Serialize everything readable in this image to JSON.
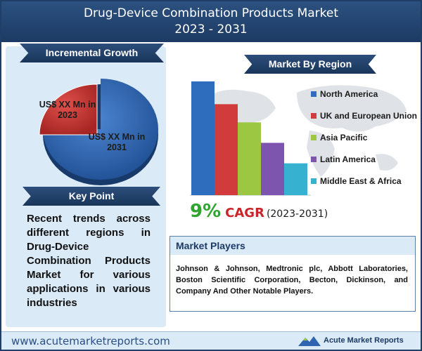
{
  "header": {
    "title_line1": "Drug-Device Combination Products Market",
    "title_line2": "2023 - 2031"
  },
  "incremental": {
    "heading": "Incremental Growth",
    "label_2023": "US$ XX Mn in 2023",
    "label_2031": "US$ XX Mn in 2031",
    "colors": {
      "2023": "#d03a37",
      "2031": "#2e64b0"
    }
  },
  "key_point": {
    "heading": "Key Point",
    "text": "Recent trends across different regions in Drug-Device Combination Products Market for various applications in various industries"
  },
  "region": {
    "heading": "Market By Region"
  },
  "chart_data": {
    "type": "bar",
    "title": "Market By Region",
    "categories": [
      "North America",
      "UK and European Union",
      "Asia Pacific",
      "Latin America",
      "Middle East & Africa"
    ],
    "values": [
      100,
      80,
      64,
      46,
      28
    ],
    "colors": [
      "#2e6cbe",
      "#d23b3b",
      "#9cc742",
      "#7d55ae",
      "#36b2d0"
    ],
    "ylim": [
      0,
      100
    ],
    "legend": "right",
    "grid": false
  },
  "cagr": {
    "value": "9%",
    "label": "CAGR",
    "years": "(2023-2031)"
  },
  "players": {
    "heading": "Market Players",
    "text": "Johnson & Johnson, Medtronic plc, Abbott Laboratories, Boston Scientific Corporation, Becton, Dickinson, and Company And Other Notable Players."
  },
  "footer": {
    "url": "www.acutemarketreports.com",
    "brand": "Acute Market Reports"
  }
}
